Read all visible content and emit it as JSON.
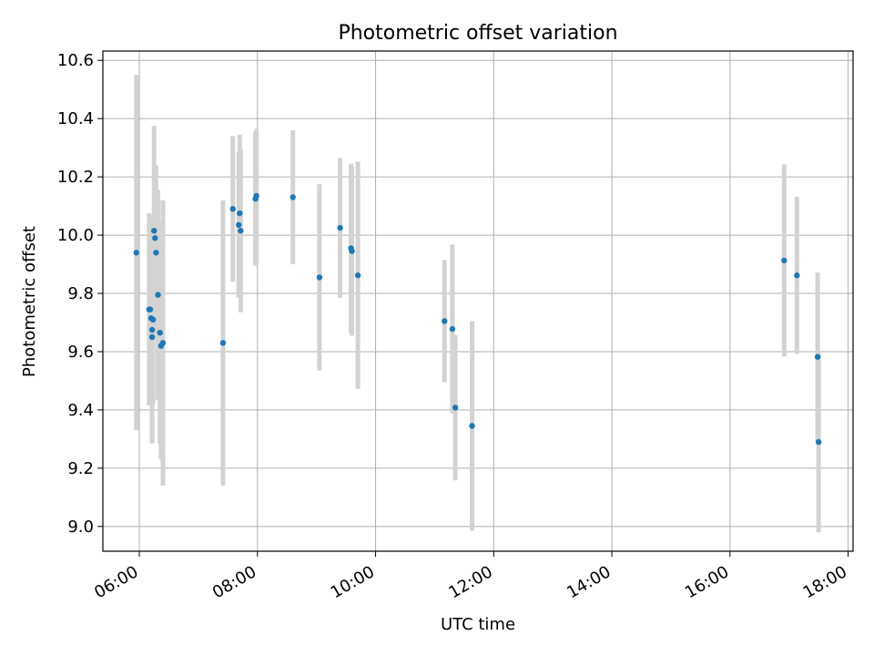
{
  "chart_data": {
    "type": "scatter",
    "title": "Photometric offset variation",
    "xlabel": "UTC time",
    "ylabel": "Photometric offset",
    "grid": true,
    "x_ticks": [
      "06:00",
      "08:00",
      "10:00",
      "12:00",
      "14:00",
      "16:00",
      "18:00"
    ],
    "y_ticks": [
      "9.0",
      "9.2",
      "9.4",
      "9.6",
      "9.8",
      "10.0",
      "10.2",
      "10.4",
      "10.6"
    ],
    "xlim": [
      "05:23",
      "18:05"
    ],
    "ylim": [
      8.915,
      10.632
    ],
    "colors": {
      "point": "#1f77b4",
      "errorbar": "#d3d3d3",
      "grid": "#b0b0b0"
    },
    "points": [
      {
        "x": "05:57",
        "y": 9.94,
        "err": 0.61
      },
      {
        "x": "06:10",
        "y": 9.745,
        "err": 0.33
      },
      {
        "x": "06:11",
        "y": 9.745,
        "err": 0.32
      },
      {
        "x": "06:12",
        "y": 9.715,
        "err": 0.25
      },
      {
        "x": "06:13",
        "y": 9.675,
        "err": 0.39
      },
      {
        "x": "06:13",
        "y": 9.65,
        "err": 0.36
      },
      {
        "x": "06:14",
        "y": 9.71,
        "err": 0.29
      },
      {
        "x": "06:15",
        "y": 10.015,
        "err": 0.36
      },
      {
        "x": "06:16",
        "y": 9.99,
        "err": 0.25
      },
      {
        "x": "06:17",
        "y": 9.94,
        "err": 0.3
      },
      {
        "x": "06:19",
        "y": 9.795,
        "err": 0.36
      },
      {
        "x": "06:21",
        "y": 9.665,
        "err": 0.38
      },
      {
        "x": "06:22",
        "y": 9.62,
        "err": 0.39
      },
      {
        "x": "06:24",
        "y": 9.63,
        "err": 0.49
      },
      {
        "x": "07:25",
        "y": 9.63,
        "err": 0.49
      },
      {
        "x": "07:35",
        "y": 10.09,
        "err": 0.25
      },
      {
        "x": "07:41",
        "y": 10.035,
        "err": 0.25
      },
      {
        "x": "07:42",
        "y": 10.075,
        "err": 0.27
      },
      {
        "x": "07:43",
        "y": 10.015,
        "err": 0.28
      },
      {
        "x": "07:58",
        "y": 10.125,
        "err": 0.23
      },
      {
        "x": "07:59",
        "y": 10.135,
        "err": 0.23
      },
      {
        "x": "08:36",
        "y": 10.13,
        "err": 0.23
      },
      {
        "x": "09:03",
        "y": 9.855,
        "err": 0.32
      },
      {
        "x": "09:24",
        "y": 10.025,
        "err": 0.24
      },
      {
        "x": "09:35",
        "y": 9.955,
        "err": 0.29
      },
      {
        "x": "09:36",
        "y": 9.945,
        "err": 0.29
      },
      {
        "x": "09:42",
        "y": 9.862,
        "err": 0.39
      },
      {
        "x": "11:10",
        "y": 9.705,
        "err": 0.21
      },
      {
        "x": "11:18",
        "y": 9.678,
        "err": 0.29
      },
      {
        "x": "11:21",
        "y": 9.408,
        "err": 0.25
      },
      {
        "x": "11:38",
        "y": 9.345,
        "err": 0.36
      },
      {
        "x": "16:55",
        "y": 9.913,
        "err": 0.33
      },
      {
        "x": "17:08",
        "y": 9.862,
        "err": 0.27
      },
      {
        "x": "17:29",
        "y": 9.582,
        "err": 0.29
      },
      {
        "x": "17:30",
        "y": 9.29,
        "err": 0.31
      }
    ]
  }
}
